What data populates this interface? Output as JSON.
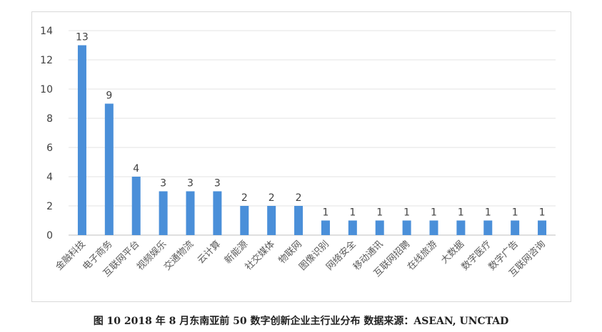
{
  "caption": "图 10 2018 年 8 月东南亚前 50 数字创新企业主行业分布  数据来源：ASEAN, UNCTAD",
  "chart_data": {
    "type": "bar",
    "title": "",
    "xlabel": "",
    "ylabel": "",
    "ylim": [
      0,
      14
    ],
    "yticks": [
      0,
      2,
      4,
      6,
      8,
      10,
      12,
      14
    ],
    "grid": true,
    "legend": "none",
    "bar_color": "#4a8fd9",
    "categories": [
      "金融科技",
      "电子商务",
      "互联网平台",
      "视频娱乐",
      "交通物流",
      "云计算",
      "新能源",
      "社交媒体",
      "物联网",
      "图像识别",
      "网络安全",
      "移动通讯",
      "互联网招聘",
      "在线旅游",
      "大数据",
      "数字医疗",
      "数字广告",
      "互联网咨询"
    ],
    "values": [
      13,
      9,
      4,
      3,
      3,
      3,
      2,
      2,
      2,
      1,
      1,
      1,
      1,
      1,
      1,
      1,
      1,
      1
    ]
  }
}
